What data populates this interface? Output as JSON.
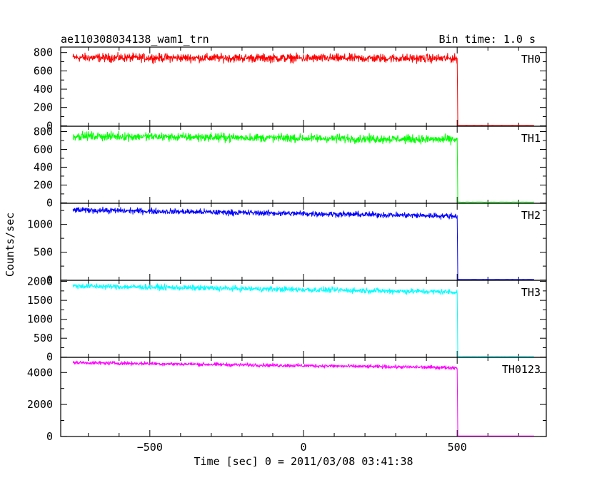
{
  "header": {
    "title": "ae110308034138_wam1_trn",
    "bin_time": "Bin time: 1.0 s"
  },
  "chart_data": {
    "type": "line",
    "xlabel": "Time [sec] 0 = 2011/03/08 03:41:38",
    "ylabel": "Counts/sec",
    "xlim": [
      -790,
      790
    ],
    "xticks": [
      -500,
      0,
      500
    ],
    "grid": false,
    "panels": [
      {
        "name": "TH0",
        "color": "#ff0000",
        "ylim": [
          -5,
          860
        ],
        "yticks": [
          0,
          200,
          400,
          600,
          800
        ],
        "level_start": 745,
        "level_end": 735,
        "noise": 45,
        "drop_x": 500,
        "after": 5
      },
      {
        "name": "TH1",
        "color": "#00ff00",
        "ylim": [
          -5,
          860
        ],
        "yticks": [
          0,
          200,
          400,
          600,
          800
        ],
        "level_start": 750,
        "level_end": 710,
        "noise": 45,
        "drop_x": 500,
        "after": 8
      },
      {
        "name": "TH2",
        "color": "#0000ff",
        "ylim": [
          -5,
          1380
        ],
        "yticks": [
          0,
          500,
          1000
        ],
        "level_start": 1260,
        "level_end": 1150,
        "noise": 50,
        "drop_x": 500,
        "after": 12
      },
      {
        "name": "TH3",
        "color": "#00ffff",
        "ylim": [
          -5,
          2030
        ],
        "yticks": [
          0,
          500,
          1000,
          1500,
          2000
        ],
        "level_start": 1880,
        "level_end": 1720,
        "noise": 70,
        "drop_x": 500,
        "after": 15
      },
      {
        "name": "TH0123",
        "color": "#ff00ff",
        "ylim": [
          -5,
          4950
        ],
        "yticks": [
          0,
          2000,
          4000
        ],
        "level_start": 4620,
        "level_end": 4300,
        "noise": 110,
        "drop_x": 500,
        "after": 30
      }
    ]
  }
}
